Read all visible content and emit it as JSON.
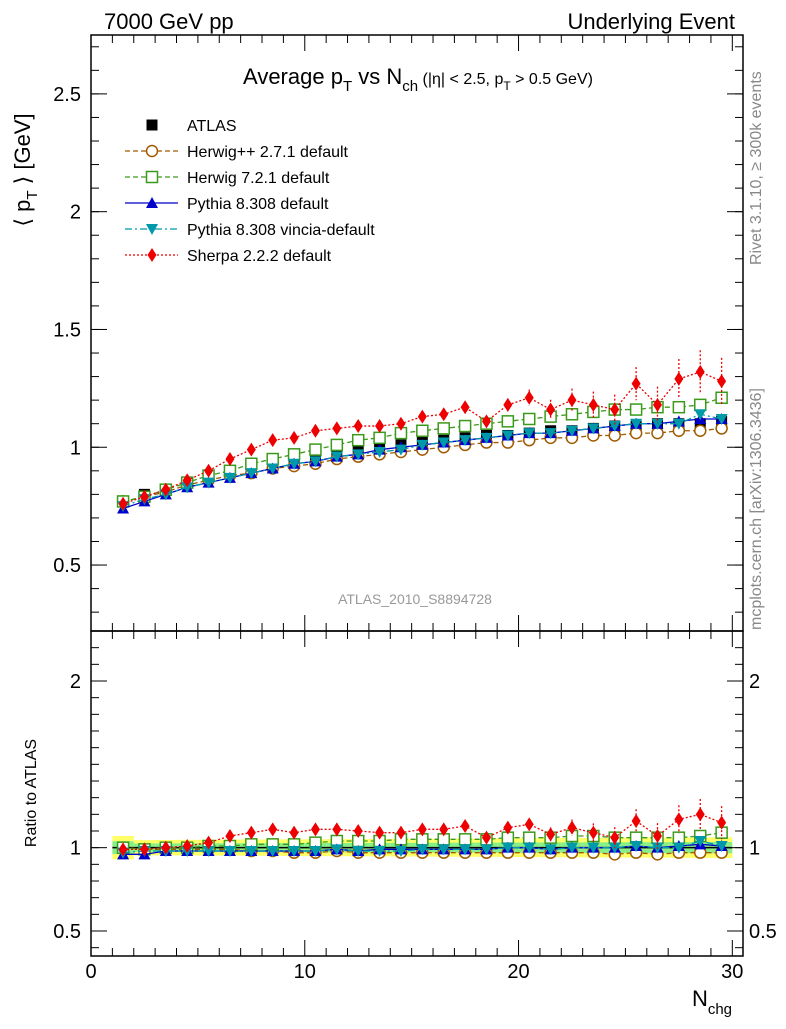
{
  "header": {
    "left": "7000 GeV pp",
    "right": "Underlying Event"
  },
  "side": {
    "rivet": "Rivet 3.1.10, ≥ 300k events",
    "mcplots": "mcplots.cern.ch [arXiv:1306.3436]"
  },
  "watermark": "ATLAS_2010_S8894728",
  "title": {
    "main": "Average p",
    "main_sub": "T",
    "vs": " vs N",
    "vs_sub": "ch",
    "cut1": " (|η| < 2.5, p",
    "cut_sub": "T",
    "cut2": " > 0.5 GeV)"
  },
  "colors": {
    "atlas": "#000000",
    "herwigpp": "#a05a00",
    "herwig7": "#3a9a1a",
    "pythia": "#0000cc",
    "vincia": "#0099aa",
    "sherpa": "#ee0000",
    "band_outer": "#ffff66",
    "band_inner": "#88ee88"
  },
  "chart_data": [
    {
      "type": "scatter",
      "title": "Average pT vs Nch (|η| < 2.5, pT > 0.5 GeV)",
      "ylabel": "⟨ p_T ⟩ [GeV]",
      "xlim": [
        0,
        30.5
      ],
      "ylim": [
        0.22,
        2.75
      ],
      "yticks": [
        0.5,
        1,
        1.5,
        2,
        2.5
      ],
      "x": [
        1.5,
        2.5,
        3.5,
        4.5,
        5.5,
        6.5,
        7.5,
        8.5,
        9.5,
        10.5,
        11.5,
        12.5,
        13.5,
        14.5,
        15.5,
        16.5,
        17.5,
        18.5,
        19.5,
        20.5,
        21.5,
        22.5,
        23.5,
        24.5,
        25.5,
        26.5,
        27.5,
        28.5,
        29.5
      ],
      "series": [
        {
          "name": "ATLAS",
          "key": "atlas",
          "marker": "filled-square",
          "values": [
            0.77,
            0.8,
            0.82,
            0.85,
            0.87,
            0.89,
            0.91,
            0.93,
            0.95,
            0.96,
            0.97,
            0.99,
            1.0,
            1.01,
            1.02,
            1.03,
            1.04,
            1.05,
            1.05,
            1.06,
            1.07,
            1.07,
            1.08,
            1.09,
            1.09,
            1.1,
            1.1,
            1.1,
            1.11
          ]
        },
        {
          "name": "Herwig++ 2.7.1 default",
          "key": "herwigpp",
          "marker": "open-circle",
          "values": [
            0.77,
            0.79,
            0.81,
            0.84,
            0.86,
            0.88,
            0.89,
            0.91,
            0.92,
            0.93,
            0.95,
            0.96,
            0.97,
            0.98,
            0.99,
            1.0,
            1.01,
            1.02,
            1.02,
            1.03,
            1.04,
            1.04,
            1.05,
            1.05,
            1.06,
            1.06,
            1.07,
            1.07,
            1.08
          ]
        },
        {
          "name": "Herwig 7.2.1 default",
          "key": "herwig7",
          "marker": "open-square",
          "values": [
            0.77,
            0.79,
            0.82,
            0.85,
            0.88,
            0.9,
            0.93,
            0.95,
            0.97,
            0.99,
            1.01,
            1.03,
            1.04,
            1.06,
            1.07,
            1.08,
            1.09,
            1.1,
            1.11,
            1.12,
            1.13,
            1.14,
            1.15,
            1.16,
            1.16,
            1.17,
            1.17,
            1.18,
            1.21
          ]
        },
        {
          "name": "Pythia 8.308 default",
          "key": "pythia",
          "marker": "filled-triangle-up",
          "values": [
            0.74,
            0.77,
            0.8,
            0.83,
            0.85,
            0.87,
            0.89,
            0.91,
            0.93,
            0.94,
            0.96,
            0.97,
            0.99,
            1.0,
            1.01,
            1.02,
            1.03,
            1.04,
            1.05,
            1.06,
            1.06,
            1.07,
            1.08,
            1.09,
            1.1,
            1.1,
            1.11,
            1.12,
            1.12
          ]
        },
        {
          "name": "Pythia 8.308 vincia-default",
          "key": "vincia",
          "marker": "filled-triangle-down",
          "values": [
            0.75,
            0.78,
            0.8,
            0.83,
            0.85,
            0.87,
            0.89,
            0.91,
            0.93,
            0.94,
            0.96,
            0.97,
            0.98,
            0.99,
            1.01,
            1.02,
            1.03,
            1.04,
            1.05,
            1.06,
            1.06,
            1.07,
            1.08,
            1.09,
            1.1,
            1.1,
            1.1,
            1.14,
            1.12
          ]
        },
        {
          "name": "Sherpa 2.2.2 default",
          "key": "sherpa",
          "marker": "filled-diamond",
          "values": [
            0.76,
            0.79,
            0.82,
            0.86,
            0.9,
            0.95,
            0.99,
            1.03,
            1.04,
            1.07,
            1.08,
            1.09,
            1.09,
            1.1,
            1.13,
            1.14,
            1.17,
            1.11,
            1.18,
            1.21,
            1.16,
            1.2,
            1.18,
            1.16,
            1.27,
            1.18,
            1.29,
            1.32,
            1.28
          ]
        }
      ]
    },
    {
      "type": "scatter",
      "ylabel": "Ratio to ATLAS",
      "xlabel": "N_chg",
      "xlim": [
        0,
        30.5
      ],
      "ylim": [
        0.35,
        2.3
      ],
      "yticks": [
        0.5,
        1,
        2
      ],
      "xticks": [
        0,
        10,
        20,
        30
      ],
      "x": [
        1.5,
        2.5,
        3.5,
        4.5,
        5.5,
        6.5,
        7.5,
        8.5,
        9.5,
        10.5,
        11.5,
        12.5,
        13.5,
        14.5,
        15.5,
        16.5,
        17.5,
        18.5,
        19.5,
        20.5,
        21.5,
        22.5,
        23.5,
        24.5,
        25.5,
        26.5,
        27.5,
        28.5,
        29.5
      ],
      "series": [
        {
          "name": "Herwig++ 2.7.1 default",
          "key": "herwigpp",
          "marker": "open-circle",
          "values": [
            1.0,
            0.99,
            0.99,
            0.99,
            0.99,
            0.99,
            0.98,
            0.98,
            0.97,
            0.97,
            0.98,
            0.97,
            0.97,
            0.97,
            0.97,
            0.97,
            0.97,
            0.97,
            0.97,
            0.97,
            0.97,
            0.97,
            0.97,
            0.96,
            0.97,
            0.96,
            0.97,
            0.97,
            0.97
          ]
        },
        {
          "name": "Herwig 7.2.1 default",
          "key": "herwig7",
          "marker": "open-square",
          "values": [
            1.0,
            0.99,
            1.0,
            1.0,
            1.01,
            1.01,
            1.02,
            1.02,
            1.02,
            1.03,
            1.04,
            1.04,
            1.04,
            1.05,
            1.05,
            1.05,
            1.05,
            1.05,
            1.06,
            1.06,
            1.06,
            1.07,
            1.07,
            1.06,
            1.06,
            1.06,
            1.06,
            1.07,
            1.09
          ]
        },
        {
          "name": "Pythia 8.308 default",
          "key": "pythia",
          "marker": "filled-triangle-up",
          "values": [
            0.96,
            0.96,
            0.98,
            0.98,
            0.98,
            0.98,
            0.98,
            0.98,
            0.98,
            0.98,
            0.99,
            0.98,
            0.99,
            0.99,
            0.99,
            0.99,
            0.99,
            0.99,
            1.0,
            1.0,
            0.99,
            1.0,
            1.0,
            1.0,
            1.01,
            1.0,
            1.01,
            1.02,
            1.01
          ]
        },
        {
          "name": "Pythia 8.308 vincia-default",
          "key": "vincia",
          "marker": "filled-triangle-down",
          "values": [
            0.97,
            0.98,
            0.98,
            0.98,
            0.98,
            0.98,
            0.98,
            0.98,
            0.98,
            0.98,
            0.99,
            0.98,
            0.98,
            0.98,
            0.99,
            0.99,
            0.99,
            0.99,
            1.0,
            1.0,
            0.99,
            1.0,
            1.0,
            1.0,
            1.01,
            1.0,
            1.0,
            1.04,
            1.01
          ]
        },
        {
          "name": "Sherpa 2.2.2 default",
          "key": "sherpa",
          "marker": "filled-diamond",
          "values": [
            0.99,
            0.99,
            1.0,
            1.01,
            1.03,
            1.07,
            1.09,
            1.11,
            1.09,
            1.11,
            1.11,
            1.1,
            1.09,
            1.09,
            1.11,
            1.11,
            1.13,
            1.06,
            1.12,
            1.14,
            1.08,
            1.12,
            1.09,
            1.06,
            1.16,
            1.07,
            1.17,
            1.2,
            1.15
          ]
        }
      ]
    }
  ]
}
